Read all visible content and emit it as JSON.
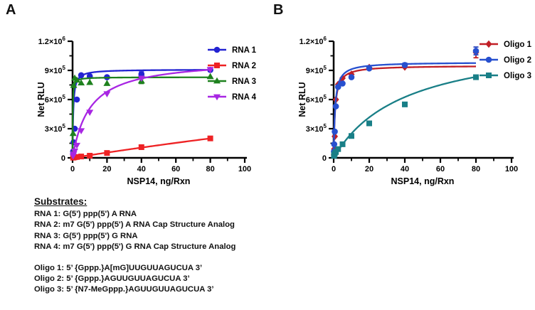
{
  "panels": [
    {
      "letter": "A"
    },
    {
      "letter": "B"
    }
  ],
  "substrates": {
    "heading": "Substrates:",
    "rna_lines": [
      "RNA 1: G(5') ppp(5') A RNA",
      "RNA 2: m7 G(5') ppp(5') A RNA Cap Structure Analog",
      "RNA 3: G(5') ppp(5') G RNA",
      "RNA 4: m7 G(5') ppp(5') G RNA Cap Structure Analog"
    ],
    "oligo_lines": [
      "Oligo 1: 5’ {Gppp.}A[mG]UUGUUAGUCUA 3’",
      "Oligo 2: 5’ {Gppp.}AGUUGUUAGUCUA 3’",
      "Oligo 3: 5’ {N7-MeGppp.}AGUUGUUAGUCUA 3’"
    ]
  },
  "chart_data": [
    {
      "panel": "A",
      "type": "scatter",
      "xlabel": "NSP14, ng/Rxn",
      "ylabel": "Net RLU",
      "xlim": [
        0,
        100
      ],
      "ylim": [
        0,
        1200000
      ],
      "xticks": [
        {
          "v": 0,
          "label": "0"
        },
        {
          "v": 20,
          "label": "20"
        },
        {
          "v": 40,
          "label": "40"
        },
        {
          "v": 60,
          "label": "60"
        },
        {
          "v": 80,
          "label": "80"
        },
        {
          "v": 100,
          "label": "100"
        }
      ],
      "xminor": [
        10,
        30,
        50,
        70,
        90
      ],
      "yticks": [
        {
          "v": 0,
          "base": "0",
          "exp": ""
        },
        {
          "v": 300000,
          "base": "3×10",
          "exp": "5"
        },
        {
          "v": 600000,
          "base": "6×10",
          "exp": "5"
        },
        {
          "v": 900000,
          "base": "9×10",
          "exp": "5"
        },
        {
          "v": 1200000,
          "base": "1.2×10",
          "exp": "6"
        }
      ],
      "yminor": [
        150000,
        450000,
        750000,
        1050000
      ],
      "x": [
        0.31,
        0.63,
        1.25,
        2.5,
        5,
        10,
        20,
        40,
        80
      ],
      "series": [
        {
          "name": "RNA 1",
          "color": "#2323d2",
          "marker": "circle",
          "fit": {
            "vmax": 910000,
            "km": 0.4
          },
          "y": [
            65000,
            160000,
            300000,
            600000,
            850000,
            840000,
            830000,
            860000,
            905000
          ],
          "yerr": [
            0,
            0,
            0,
            0,
            0,
            0,
            0,
            25000,
            15000
          ]
        },
        {
          "name": "RNA 2",
          "color": "#ee2224",
          "marker": "square",
          "fit": {
            "vmax": 2000000,
            "km": 720
          },
          "y": [
            2000,
            4000,
            6000,
            9000,
            14000,
            22000,
            50000,
            110000,
            200000
          ],
          "yerr": [
            0,
            0,
            0,
            0,
            0,
            0,
            0,
            0,
            0
          ]
        },
        {
          "name": "RNA 3",
          "color": "#1e811e",
          "marker": "triangle-up",
          "fit": {
            "vmax": 830000,
            "km": 0.12
          },
          "y": [
            250000,
            745000,
            820000,
            800000,
            770000,
            775000,
            765000,
            790000,
            835000
          ],
          "yerr": [
            0,
            0,
            0,
            0,
            0,
            0,
            0,
            25000,
            0
          ]
        },
        {
          "name": "RNA 4",
          "color": "#a826e3",
          "marker": "triangle-down",
          "fit": {
            "vmax": 1020000,
            "km": 10
          },
          "y": [
            20000,
            40000,
            70000,
            130000,
            280000,
            470000,
            660000,
            820000,
            910000
          ],
          "yerr": [
            0,
            0,
            0,
            0,
            0,
            0,
            0,
            0,
            0
          ]
        }
      ]
    },
    {
      "panel": "B",
      "type": "scatter",
      "xlabel": "NSP14, ng/Rxn",
      "ylabel": "Net RLU",
      "xlim": [
        0,
        100
      ],
      "ylim": [
        0,
        1200000
      ],
      "xticks": [
        {
          "v": 0,
          "label": "0"
        },
        {
          "v": 20,
          "label": "20"
        },
        {
          "v": 40,
          "label": "40"
        },
        {
          "v": 60,
          "label": "60"
        },
        {
          "v": 80,
          "label": "80"
        },
        {
          "v": 100,
          "label": "100"
        }
      ],
      "xminor": [
        10,
        30,
        50,
        70,
        90
      ],
      "yticks": [
        {
          "v": 0,
          "base": "0",
          "exp": ""
        },
        {
          "v": 300000,
          "base": "3×10",
          "exp": "5"
        },
        {
          "v": 600000,
          "base": "6×10",
          "exp": "5"
        },
        {
          "v": 900000,
          "base": "9×10",
          "exp": "5"
        },
        {
          "v": 1200000,
          "base": "1.2×10",
          "exp": "6"
        }
      ],
      "yminor": [
        150000,
        450000,
        750000,
        1050000
      ],
      "x": [
        0.16,
        0.31,
        0.63,
        1.25,
        2.5,
        5,
        10,
        20,
        40,
        80
      ],
      "series": [
        {
          "name": "Oligo 1",
          "color": "#c11f26",
          "marker": "diamond",
          "fit": {
            "vmax": 950000,
            "km": 0.8
          },
          "y": [
            30000,
            90000,
            220000,
            600000,
            755000,
            820000,
            860000,
            930000,
            935000,
            1085000
          ],
          "yerr": [
            0,
            0,
            0,
            0,
            0,
            0,
            0,
            0,
            0,
            55000
          ]
        },
        {
          "name": "Oligo 2",
          "color": "#2750cf",
          "marker": "circle",
          "fit": {
            "vmax": 985000,
            "km": 0.8
          },
          "y": [
            65000,
            140000,
            270000,
            530000,
            730000,
            765000,
            830000,
            920000,
            955000,
            1100000
          ],
          "yerr": [
            0,
            0,
            0,
            0,
            0,
            0,
            0,
            0,
            20000,
            40000
          ]
        },
        {
          "name": "Oligo 3",
          "color": "#197f87",
          "marker": "square",
          "fit": {
            "vmax": 1250000,
            "km": 40
          },
          "y": [
            20000,
            30000,
            45000,
            60000,
            90000,
            140000,
            225000,
            355000,
            550000,
            830000
          ],
          "yerr": [
            0,
            0,
            0,
            0,
            0,
            0,
            0,
            0,
            0,
            0
          ]
        }
      ]
    }
  ]
}
